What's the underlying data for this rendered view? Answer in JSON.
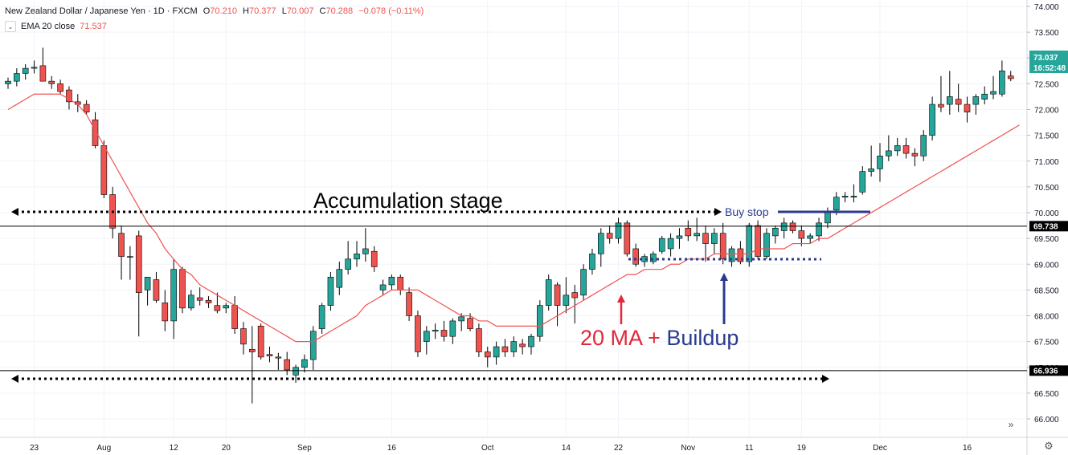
{
  "header": {
    "symbol": "New Zealand Dollar / Japanese Yen · 1D · FXCM",
    "ohlc": [
      {
        "label": "O",
        "value": "70.210"
      },
      {
        "label": "H",
        "value": "70.377"
      },
      {
        "label": "L",
        "value": "70.007"
      },
      {
        "label": "C",
        "value": "70.288"
      }
    ],
    "change": "−0.078 (−0.11%)",
    "indicator_label": "EMA 20 close",
    "indicator_value": "71.537"
  },
  "colors": {
    "up": "#26a69a",
    "down": "#ef5350",
    "ema": "#ef5350",
    "buildup_text": "#2a3b8f",
    "ma_text": "#e0283a",
    "price_tag": "#26a69a",
    "level_tag": "#000000"
  },
  "annotations": {
    "accumulation": "Accumulation  stage",
    "buy_stop": "Buy  stop",
    "ma_text": "20 MA + ",
    "buildup_text": "Buildup"
  },
  "price_tags": {
    "current": "73.037",
    "countdown": "16:52:48",
    "upper_level": "69.738",
    "lower_level": "66.936"
  },
  "chart_data": {
    "type": "candlestick",
    "y_axis_ticks": [
      66.0,
      66.5,
      67.0,
      67.5,
      68.0,
      68.5,
      69.0,
      69.5,
      70.0,
      70.5,
      71.0,
      71.5,
      72.0,
      72.5,
      73.0,
      73.5,
      74.0
    ],
    "y_range": [
      65.7,
      74.1
    ],
    "x_labels": [
      "23",
      "Aug",
      "12",
      "20",
      "Sep",
      "16",
      "Oct",
      "14",
      "22",
      "Nov",
      "11",
      "19",
      "Dec",
      "16"
    ],
    "x_label_bars": [
      3,
      11,
      19,
      25,
      34,
      44,
      55,
      64,
      70,
      78,
      85,
      91,
      100,
      110
    ],
    "candles": [
      [
        72.5,
        72.62,
        72.4,
        72.55
      ],
      [
        72.55,
        72.8,
        72.45,
        72.7
      ],
      [
        72.7,
        72.88,
        72.58,
        72.8
      ],
      [
        72.8,
        72.95,
        72.7,
        72.82
      ],
      [
        72.85,
        73.2,
        72.55,
        72.55
      ],
      [
        72.55,
        72.65,
        72.4,
        72.5
      ],
      [
        72.5,
        72.58,
        72.3,
        72.35
      ],
      [
        72.38,
        72.45,
        72.0,
        72.15
      ],
      [
        72.15,
        72.3,
        71.95,
        72.1
      ],
      [
        72.1,
        72.18,
        71.9,
        71.95
      ],
      [
        71.8,
        71.95,
        71.25,
        71.3
      ],
      [
        71.3,
        71.4,
        70.28,
        70.35
      ],
      [
        70.35,
        70.5,
        69.5,
        69.7
      ],
      [
        69.6,
        69.75,
        68.7,
        69.15
      ],
      [
        69.15,
        69.35,
        68.7,
        69.15
      ],
      [
        69.55,
        69.65,
        67.6,
        68.45
      ],
      [
        68.5,
        68.75,
        68.2,
        68.75
      ],
      [
        68.7,
        68.85,
        68.25,
        68.3
      ],
      [
        68.25,
        68.5,
        67.7,
        67.9
      ],
      [
        67.9,
        69.1,
        67.55,
        68.9
      ],
      [
        68.9,
        68.95,
        68.05,
        68.15
      ],
      [
        68.15,
        68.5,
        68.1,
        68.4
      ],
      [
        68.35,
        68.55,
        68.2,
        68.3
      ],
      [
        68.3,
        68.38,
        68.15,
        68.25
      ],
      [
        68.2,
        68.45,
        68.05,
        68.1
      ],
      [
        68.15,
        68.25,
        68.05,
        68.2
      ],
      [
        68.2,
        68.38,
        67.65,
        67.75
      ],
      [
        67.75,
        67.88,
        67.25,
        67.45
      ],
      [
        67.35,
        67.8,
        66.3,
        67.3
      ],
      [
        67.8,
        67.85,
        67.15,
        67.2
      ],
      [
        67.25,
        67.4,
        67.1,
        67.22
      ],
      [
        67.2,
        67.28,
        66.95,
        67.18
      ],
      [
        67.15,
        67.3,
        66.85,
        66.95
      ],
      [
        66.85,
        67.05,
        66.7,
        67.0
      ],
      [
        67.0,
        67.25,
        66.9,
        67.15
      ],
      [
        67.15,
        67.8,
        66.95,
        67.7
      ],
      [
        67.75,
        68.25,
        67.65,
        68.2
      ],
      [
        68.2,
        68.85,
        68.1,
        68.75
      ],
      [
        68.55,
        69.05,
        68.4,
        68.9
      ],
      [
        68.9,
        69.45,
        68.8,
        69.1
      ],
      [
        69.1,
        69.45,
        68.95,
        69.2
      ],
      [
        69.2,
        69.7,
        69.05,
        69.3
      ],
      [
        69.25,
        69.35,
        68.85,
        68.95
      ],
      [
        68.5,
        68.7,
        68.4,
        68.6
      ],
      [
        68.6,
        68.8,
        68.5,
        68.75
      ],
      [
        68.75,
        68.8,
        68.4,
        68.5
      ],
      [
        68.45,
        68.55,
        67.9,
        68.0
      ],
      [
        68.0,
        68.1,
        67.2,
        67.3
      ],
      [
        67.5,
        67.8,
        67.25,
        67.7
      ],
      [
        67.7,
        67.85,
        67.55,
        67.72
      ],
      [
        67.72,
        67.9,
        67.5,
        67.6
      ],
      [
        67.6,
        67.95,
        67.45,
        67.9
      ],
      [
        67.9,
        68.05,
        67.7,
        67.98
      ],
      [
        67.95,
        68.05,
        67.7,
        67.75
      ],
      [
        67.75,
        67.85,
        67.2,
        67.3
      ],
      [
        67.3,
        67.4,
        67.0,
        67.2
      ],
      [
        67.2,
        67.5,
        67.05,
        67.4
      ],
      [
        67.4,
        67.55,
        67.2,
        67.3
      ],
      [
        67.3,
        67.6,
        67.2,
        67.5
      ],
      [
        67.45,
        67.55,
        67.25,
        67.4
      ],
      [
        67.4,
        67.65,
        67.25,
        67.6
      ],
      [
        67.6,
        68.3,
        67.5,
        68.2
      ],
      [
        68.2,
        68.8,
        68.1,
        68.7
      ],
      [
        68.6,
        68.65,
        67.8,
        68.2
      ],
      [
        68.2,
        68.75,
        68.05,
        68.4
      ],
      [
        68.45,
        68.6,
        67.85,
        68.35
      ],
      [
        68.4,
        69.0,
        68.3,
        68.9
      ],
      [
        68.9,
        69.3,
        68.8,
        69.2
      ],
      [
        69.2,
        69.7,
        68.95,
        69.6
      ],
      [
        69.6,
        69.75,
        69.4,
        69.5
      ],
      [
        69.5,
        69.9,
        69.4,
        69.8
      ],
      [
        69.8,
        69.85,
        69.15,
        69.2
      ],
      [
        69.3,
        69.4,
        68.95,
        69.0
      ],
      [
        69.05,
        69.2,
        68.95,
        69.15
      ],
      [
        69.05,
        69.25,
        69.0,
        69.2
      ],
      [
        69.25,
        69.55,
        69.2,
        69.5
      ],
      [
        69.3,
        69.6,
        69.15,
        69.5
      ],
      [
        69.5,
        69.7,
        69.3,
        69.55
      ],
      [
        69.7,
        69.85,
        69.45,
        69.55
      ],
      [
        69.55,
        69.9,
        69.45,
        69.6
      ],
      [
        69.6,
        69.75,
        69.05,
        69.4
      ],
      [
        69.4,
        69.7,
        69.2,
        69.6
      ],
      [
        69.6,
        69.8,
        69.0,
        69.1
      ],
      [
        69.05,
        69.35,
        68.95,
        69.3
      ],
      [
        69.3,
        69.45,
        69.0,
        69.05
      ],
      [
        69.05,
        69.8,
        68.95,
        69.75
      ],
      [
        69.75,
        69.85,
        69.1,
        69.15
      ],
      [
        69.15,
        69.7,
        69.1,
        69.6
      ],
      [
        69.55,
        69.75,
        69.4,
        69.7
      ],
      [
        69.65,
        69.9,
        69.5,
        69.8
      ],
      [
        69.8,
        69.85,
        69.6,
        69.65
      ],
      [
        69.65,
        69.75,
        69.35,
        69.5
      ],
      [
        69.5,
        69.6,
        69.4,
        69.55
      ],
      [
        69.55,
        69.9,
        69.45,
        69.8
      ],
      [
        69.8,
        70.1,
        69.7,
        70.0
      ],
      [
        70.05,
        70.4,
        69.95,
        70.3
      ],
      [
        70.3,
        70.4,
        70.2,
        70.32
      ],
      [
        70.3,
        70.55,
        70.2,
        70.32
      ],
      [
        70.4,
        70.9,
        70.35,
        70.8
      ],
      [
        70.8,
        71.3,
        70.7,
        70.85
      ],
      [
        70.85,
        71.35,
        70.6,
        71.1
      ],
      [
        71.1,
        71.5,
        71.0,
        71.2
      ],
      [
        71.2,
        71.45,
        71.1,
        71.3
      ],
      [
        71.3,
        71.45,
        71.05,
        71.15
      ],
      [
        71.15,
        71.25,
        70.9,
        71.1
      ],
      [
        71.1,
        71.6,
        71.0,
        71.5
      ],
      [
        71.5,
        72.25,
        71.4,
        72.1
      ],
      [
        72.1,
        72.65,
        71.95,
        72.05
      ],
      [
        72.1,
        72.75,
        71.9,
        72.25
      ],
      [
        72.2,
        72.5,
        71.95,
        72.1
      ],
      [
        72.1,
        72.25,
        71.75,
        71.95
      ],
      [
        72.1,
        72.3,
        71.9,
        72.25
      ],
      [
        72.2,
        72.45,
        72.1,
        72.3
      ],
      [
        72.3,
        72.65,
        72.2,
        72.35
      ],
      [
        72.3,
        72.95,
        72.25,
        72.75
      ],
      [
        72.65,
        72.75,
        72.55,
        72.6
      ]
    ],
    "ema20": [
      72.0,
      72.1,
      72.2,
      72.3,
      72.3,
      72.3,
      72.3,
      72.2,
      72.1,
      71.9,
      71.6,
      71.3,
      71.0,
      70.7,
      70.4,
      70.1,
      69.8,
      69.6,
      69.3,
      69.1,
      68.9,
      68.8,
      68.6,
      68.5,
      68.4,
      68.3,
      68.2,
      68.1,
      68.0,
      67.9,
      67.8,
      67.7,
      67.6,
      67.5,
      67.5,
      67.5,
      67.6,
      67.7,
      67.8,
      67.9,
      68.0,
      68.2,
      68.3,
      68.4,
      68.5,
      68.5,
      68.5,
      68.5,
      68.4,
      68.3,
      68.2,
      68.1,
      68.0,
      68.0,
      67.9,
      67.9,
      67.8,
      67.8,
      67.8,
      67.8,
      67.8,
      67.8,
      67.9,
      68.0,
      68.1,
      68.2,
      68.3,
      68.4,
      68.5,
      68.6,
      68.7,
      68.8,
      68.8,
      68.9,
      68.9,
      68.9,
      69.0,
      69.0,
      69.1,
      69.1,
      69.1,
      69.2,
      69.2,
      69.2,
      69.2,
      69.2,
      69.3,
      69.3,
      69.3,
      69.3,
      69.4,
      69.4,
      69.4,
      69.5,
      69.5,
      69.6,
      69.7,
      69.8,
      69.9,
      70.0,
      70.1,
      70.2,
      70.3,
      70.4,
      70.5,
      70.6,
      70.7,
      70.8,
      70.9,
      71.0,
      71.1,
      71.2,
      71.3,
      71.4,
      71.5,
      71.6,
      71.7
    ]
  }
}
